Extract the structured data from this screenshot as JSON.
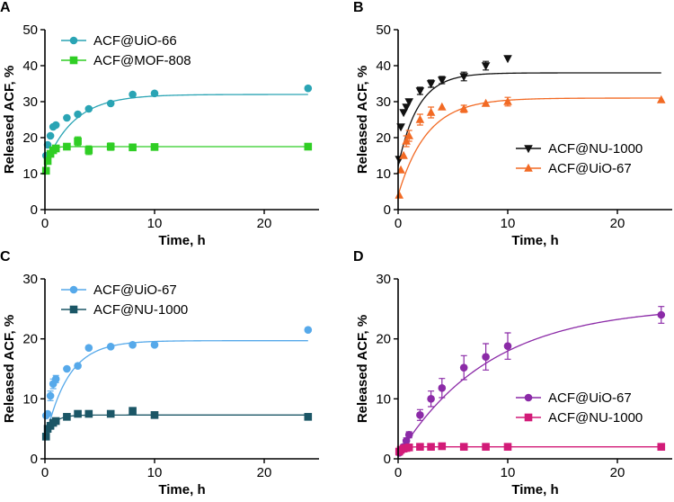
{
  "chart_data": [
    {
      "panel": "A",
      "type": "scatter",
      "xlabel": "Time, h",
      "ylabel": "Released  ACF, %",
      "xlim": [
        0,
        25
      ],
      "ylim": [
        0,
        50
      ],
      "xticks": [
        0,
        10,
        20
      ],
      "yticks": [
        0,
        10,
        20,
        30,
        40,
        50
      ],
      "legend_position": "top-left",
      "series": [
        {
          "name": "ACF@UiO-66",
          "marker": "circle",
          "color": "#2aa4b4",
          "x": [
            0.1,
            0.25,
            0.5,
            0.75,
            1,
            2,
            3,
            4,
            6,
            8,
            10,
            24
          ],
          "y": [
            15,
            18,
            20.5,
            23,
            23.5,
            25.5,
            26.5,
            28,
            29.5,
            32,
            32.3,
            33.7
          ],
          "err": [
            0,
            0,
            0,
            0,
            0,
            0,
            0,
            0,
            0,
            0,
            0,
            0
          ],
          "fit": {
            "a": 32,
            "b": 0.38,
            "y0": 12
          }
        },
        {
          "name": "ACF@MOF-808",
          "marker": "square",
          "color": "#2fce24",
          "x": [
            0.1,
            0.25,
            0.5,
            0.75,
            1,
            2,
            3,
            4,
            6,
            8,
            10,
            24
          ],
          "y": [
            10.8,
            13.5,
            15.5,
            16.5,
            17,
            17.5,
            19,
            16.5,
            17.5,
            17.3,
            17.4,
            17.5
          ],
          "err": [
            0,
            0,
            0,
            0,
            0,
            0,
            1.2,
            1.2,
            1.0,
            0.5,
            0,
            0
          ],
          "fit": {
            "a": 17.5,
            "b": 3.0,
            "y0": 10
          }
        }
      ]
    },
    {
      "panel": "B",
      "type": "scatter",
      "xlabel": "Time, h",
      "ylabel": "Released  ACF, %",
      "xlim": [
        0,
        25
      ],
      "ylim": [
        0,
        50
      ],
      "xticks": [
        0,
        10,
        20
      ],
      "yticks": [
        0,
        10,
        20,
        30,
        40,
        50
      ],
      "legend_position": "bottom-right",
      "series": [
        {
          "name": "ACF@NU-1000",
          "marker": "triangle-down",
          "color": "#111111",
          "x": [
            0.1,
            0.25,
            0.5,
            0.75,
            1,
            2,
            3,
            4,
            6,
            8,
            10
          ],
          "y": [
            14,
            23,
            27,
            28.5,
            30,
            33,
            35,
            36,
            37,
            40,
            42
          ],
          "err": [
            0,
            0,
            0,
            0,
            0,
            1.0,
            1.0,
            1.0,
            1.2,
            1.2,
            0
          ],
          "fit": {
            "a": 38,
            "b": 0.55,
            "y0": 12
          }
        },
        {
          "name": "ACF@UiO-67",
          "marker": "triangle-up",
          "color": "#f26a24",
          "x": [
            0.1,
            0.25,
            0.5,
            0.75,
            1,
            2,
            3,
            4,
            6,
            8,
            10,
            24
          ],
          "y": [
            4,
            11,
            15,
            19,
            20.5,
            25,
            27,
            28.5,
            28,
            29.5,
            30,
            30.5
          ],
          "err": [
            0,
            0,
            0,
            1.5,
            1.5,
            1.5,
            1.5,
            0,
            1.0,
            0,
            1.2,
            0
          ],
          "fit": {
            "a": 31,
            "b": 0.38,
            "y0": 4
          }
        }
      ]
    },
    {
      "panel": "C",
      "type": "scatter",
      "xlabel": "Time, h",
      "ylabel": "Released  ACF, %",
      "xlim": [
        0,
        25
      ],
      "ylim": [
        0,
        30
      ],
      "xticks": [
        0,
        10,
        20
      ],
      "yticks": [
        0,
        10,
        20,
        30
      ],
      "legend_position": "top-left",
      "series": [
        {
          "name": "ACF@UiO-67",
          "marker": "circle",
          "color": "#56a9ea",
          "x": [
            0.1,
            0.25,
            0.5,
            0.75,
            1,
            2,
            3,
            4,
            6,
            8,
            10,
            24
          ],
          "y": [
            7.2,
            7.5,
            10.5,
            12.5,
            13.3,
            15,
            15.5,
            18.5,
            18.7,
            19,
            19,
            21.5
          ],
          "err": [
            0,
            0,
            0.8,
            0.8,
            0.6,
            0,
            0,
            0,
            0,
            0,
            0,
            0
          ],
          "fit": {
            "a": 19.7,
            "b": 0.48,
            "y0": 3
          }
        },
        {
          "name": "ACF@NU-1000",
          "marker": "square",
          "color": "#1b5666",
          "x": [
            0.1,
            0.25,
            0.5,
            0.75,
            1,
            2,
            3,
            4,
            6,
            8,
            10,
            24
          ],
          "y": [
            3.7,
            5,
            5.5,
            6,
            6.3,
            7,
            7.5,
            7.5,
            7.5,
            8,
            7.3,
            7
          ],
          "err": [
            0,
            0,
            0,
            0,
            0,
            0,
            0,
            0,
            0,
            0,
            0,
            0
          ],
          "fit": {
            "a": 7.3,
            "b": 1.3,
            "y0": 3.5
          }
        }
      ]
    },
    {
      "panel": "D",
      "type": "scatter",
      "xlabel": "Time, h",
      "ylabel": "Released  ACF, %",
      "xlim": [
        0,
        25
      ],
      "ylim": [
        0,
        30
      ],
      "xticks": [
        0,
        10,
        20
      ],
      "yticks": [
        0,
        10,
        20,
        30
      ],
      "legend_position": "bottom-right",
      "series": [
        {
          "name": "ACF@UiO-67",
          "marker": "circle",
          "color": "#8b2aa7",
          "x": [
            0.1,
            0.25,
            0.5,
            0.75,
            1,
            2,
            3,
            4,
            6,
            8,
            10,
            24
          ],
          "y": [
            1.0,
            1.3,
            2.0,
            3.0,
            4.0,
            7.3,
            10,
            11.8,
            15.2,
            17,
            18.8,
            24
          ],
          "err": [
            0.3,
            0.3,
            0.4,
            0.5,
            0.5,
            0.9,
            1.3,
            1.6,
            2.0,
            2.2,
            2.2,
            1.4
          ],
          "fit": {
            "a": 25.5,
            "b": 0.12,
            "y0": 0.5
          }
        },
        {
          "name": "ACF@NU-1000",
          "marker": "square",
          "color": "#d21b78",
          "x": [
            0.1,
            0.25,
            0.5,
            0.75,
            1,
            2,
            3,
            4,
            6,
            8,
            10,
            24
          ],
          "y": [
            1.2,
            1.5,
            1.7,
            1.8,
            1.9,
            2.0,
            2.0,
            2.1,
            2.0,
            2.0,
            2.0,
            2.0
          ],
          "err": [
            0,
            0,
            0,
            0,
            0,
            0,
            0,
            0,
            0,
            0,
            0,
            0
          ],
          "fit": {
            "a": 2.0,
            "b": 2.5,
            "y0": 1.0
          }
        }
      ]
    }
  ]
}
